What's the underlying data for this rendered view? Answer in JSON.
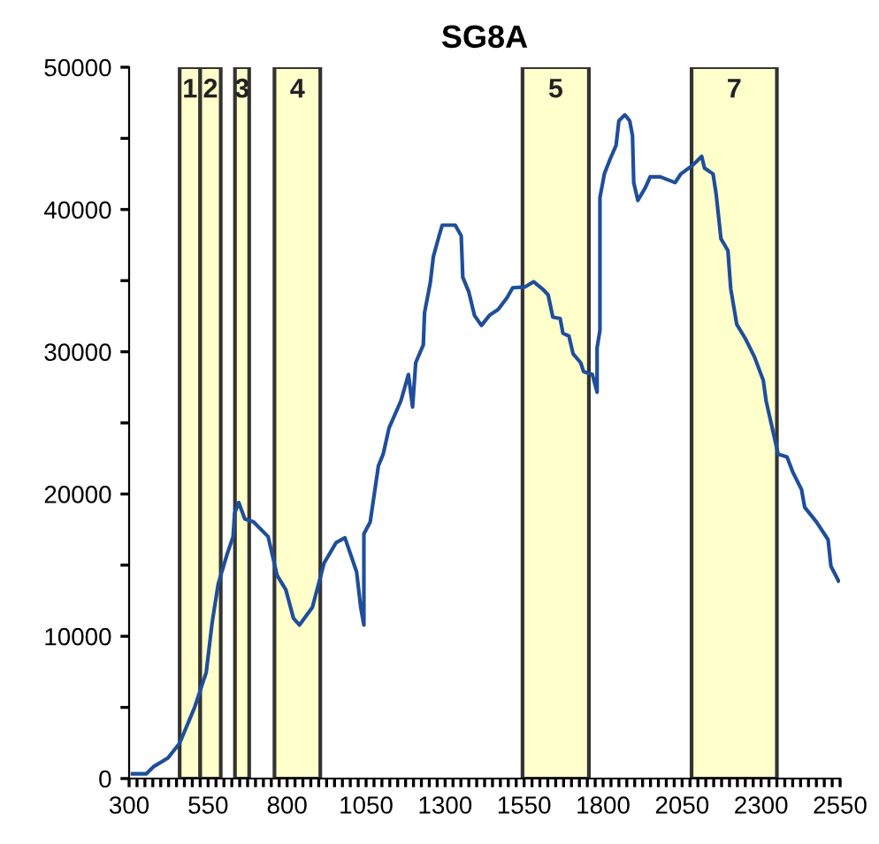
{
  "chart_data": {
    "type": "line",
    "title": "SG8A",
    "xlim": [
      300,
      2550
    ],
    "ylim": [
      0,
      50000
    ],
    "xticks": [
      300,
      {
        "value": 325,
        "label": null
      },
      {
        "value": 350,
        "label": null
      },
      {
        "value": 375,
        "label": null
      },
      {
        "value": 400,
        "label": null
      },
      {
        "value": 425,
        "label": null
      },
      {
        "value": 450,
        "label": null
      },
      {
        "value": 475,
        "label": null
      },
      {
        "value": 500,
        "label": null
      },
      {
        "value": 525,
        "label": null
      },
      550,
      {
        "value": 575,
        "label": null
      },
      {
        "value": 600,
        "label": null
      },
      {
        "value": 625,
        "label": null
      },
      {
        "value": 650,
        "label": null
      },
      {
        "value": 675,
        "label": null
      },
      {
        "value": 700,
        "label": null
      },
      {
        "value": 725,
        "label": null
      },
      {
        "value": 750,
        "label": null
      },
      {
        "value": 775,
        "label": null
      },
      800,
      {
        "value": 825,
        "label": null
      },
      {
        "value": 850,
        "label": null
      },
      {
        "value": 875,
        "label": null
      },
      {
        "value": 900,
        "label": null
      },
      {
        "value": 925,
        "label": null
      },
      {
        "value": 950,
        "label": null
      },
      {
        "value": 975,
        "label": null
      },
      {
        "value": 1000,
        "label": null
      },
      {
        "value": 1025,
        "label": null
      },
      1050,
      {
        "value": 1075,
        "label": null
      },
      {
        "value": 1100,
        "label": null
      },
      {
        "value": 1125,
        "label": null
      },
      {
        "value": 1150,
        "label": null
      },
      {
        "value": 1175,
        "label": null
      },
      {
        "value": 1200,
        "label": null
      },
      {
        "value": 1225,
        "label": null
      },
      {
        "value": 1250,
        "label": null
      },
      {
        "value": 1275,
        "label": null
      },
      1300,
      {
        "value": 1325,
        "label": null
      },
      {
        "value": 1350,
        "label": null
      },
      {
        "value": 1375,
        "label": null
      },
      {
        "value": 1400,
        "label": null
      },
      {
        "value": 1425,
        "label": null
      },
      {
        "value": 1450,
        "label": null
      },
      {
        "value": 1475,
        "label": null
      },
      {
        "value": 1500,
        "label": null
      },
      {
        "value": 1525,
        "label": null
      },
      1550,
      {
        "value": 1575,
        "label": null
      },
      {
        "value": 1600,
        "label": null
      },
      {
        "value": 1625,
        "label": null
      },
      {
        "value": 1650,
        "label": null
      },
      {
        "value": 1675,
        "label": null
      },
      {
        "value": 1700,
        "label": null
      },
      {
        "value": 1725,
        "label": null
      },
      {
        "value": 1750,
        "label": null
      },
      {
        "value": 1775,
        "label": null
      },
      1800,
      {
        "value": 1825,
        "label": null
      },
      {
        "value": 1850,
        "label": null
      },
      {
        "value": 1875,
        "label": null
      },
      {
        "value": 1900,
        "label": null
      },
      {
        "value": 1925,
        "label": null
      },
      {
        "value": 1950,
        "label": null
      },
      {
        "value": 1975,
        "label": null
      },
      {
        "value": 2000,
        "label": null
      },
      {
        "value": 2025,
        "label": null
      },
      2050,
      {
        "value": 2075,
        "label": null
      },
      {
        "value": 2100,
        "label": null
      },
      {
        "value": 2125,
        "label": null
      },
      {
        "value": 2150,
        "label": null
      },
      {
        "value": 2175,
        "label": null
      },
      {
        "value": 2200,
        "label": null
      },
      {
        "value": 2225,
        "label": null
      },
      {
        "value": 2250,
        "label": null
      },
      {
        "value": 2275,
        "label": null
      },
      2300,
      {
        "value": 2325,
        "label": null
      },
      {
        "value": 2350,
        "label": null
      },
      {
        "value": 2375,
        "label": null
      },
      {
        "value": 2400,
        "label": null
      },
      {
        "value": 2425,
        "label": null
      },
      {
        "value": 2450,
        "label": null
      },
      {
        "value": 2475,
        "label": null
      },
      {
        "value": 2500,
        "label": null
      },
      {
        "value": 2525,
        "label": null
      },
      2550
    ],
    "yticks": [
      0,
      {
        "value": 5000,
        "label": null
      },
      10000,
      {
        "value": 15000,
        "label": null
      },
      20000,
      {
        "value": 25000,
        "label": null
      },
      30000,
      {
        "value": 35000,
        "label": null
      },
      40000,
      {
        "value": 45000,
        "label": null
      },
      50000
    ],
    "grid": false,
    "legend": false,
    "bands": [
      {
        "axis": "x",
        "from": 460,
        "to": 525,
        "label": "1",
        "color": "#ffffcc"
      },
      {
        "axis": "x",
        "from": 525,
        "to": 590,
        "label": "2",
        "color": "#ffffcc"
      },
      {
        "axis": "x",
        "from": 635,
        "to": 680,
        "label": "3",
        "color": "#ffffcc"
      },
      {
        "axis": "x",
        "from": 760,
        "to": 905,
        "label": "4",
        "color": "#ffffcc"
      },
      {
        "axis": "x",
        "from": 1545,
        "to": 1755,
        "label": "5",
        "color": "#ffffcc"
      },
      {
        "axis": "x",
        "from": 2080,
        "to": 2350,
        "label": "7",
        "color": "#ffffcc"
      }
    ],
    "series": [
      {
        "color": "#1f4e9a",
        "line_style": "solid",
        "marker": "none",
        "x": [
          311,
          354,
          377,
          423,
          460,
          507,
          544,
          563,
          582,
          610,
          629,
          634,
          647,
          666,
          694,
          740,
          768,
          796,
          820,
          839,
          880,
          917,
          955,
          983,
          1020,
          1033,
          1043,
          1043,
          1063,
          1089,
          1104,
          1123,
          1160,
          1184,
          1197,
          1207,
          1231,
          1235,
          1253,
          1263,
          1281,
          1291,
          1332,
          1351,
          1356,
          1375,
          1393,
          1415,
          1440,
          1468,
          1496,
          1514,
          1552,
          1580,
          1608,
          1626,
          1641,
          1664,
          1673,
          1692,
          1705,
          1729,
          1738,
          1766,
          1781,
          1781,
          1790,
          1790,
          1804,
          1822,
          1841,
          1850,
          1869,
          1884,
          1893,
          1897,
          1910,
          1934,
          1949,
          1981,
          2028,
          2046,
          2084,
          2112,
          2121,
          2148,
          2158,
          2173,
          2195,
          2204,
          2223,
          2251,
          2279,
          2307,
          2316,
          2354,
          2382,
          2400,
          2428,
          2438,
          2475,
          2512,
          2521,
          2545
        ],
        "values": [
          330,
          330,
          830,
          1450,
          2490,
          4980,
          7460,
          10990,
          13680,
          15760,
          17000,
          18660,
          19400,
          18250,
          18040,
          17000,
          14300,
          13270,
          11280,
          10790,
          12030,
          15140,
          16580,
          16920,
          14520,
          12030,
          10790,
          17200,
          18040,
          21980,
          22800,
          24670,
          26540,
          28400,
          26120,
          29230,
          30480,
          32750,
          34830,
          36700,
          38150,
          38900,
          38900,
          38150,
          35240,
          34210,
          32550,
          31850,
          32550,
          32970,
          33800,
          34500,
          34550,
          34920,
          34420,
          34000,
          32430,
          32340,
          31310,
          31100,
          29860,
          29230,
          28610,
          28400,
          27160,
          30270,
          31510,
          40840,
          42500,
          43530,
          44500,
          46240,
          46650,
          46240,
          45200,
          41890,
          40640,
          41550,
          42300,
          42300,
          41890,
          42500,
          43120,
          43740,
          42910,
          42500,
          41050,
          37940,
          37110,
          34420,
          31930,
          30890,
          29640,
          27990,
          26530,
          22800,
          22600,
          21560,
          20310,
          19070,
          18040,
          16790,
          14930,
          13890
        ]
      }
    ]
  }
}
